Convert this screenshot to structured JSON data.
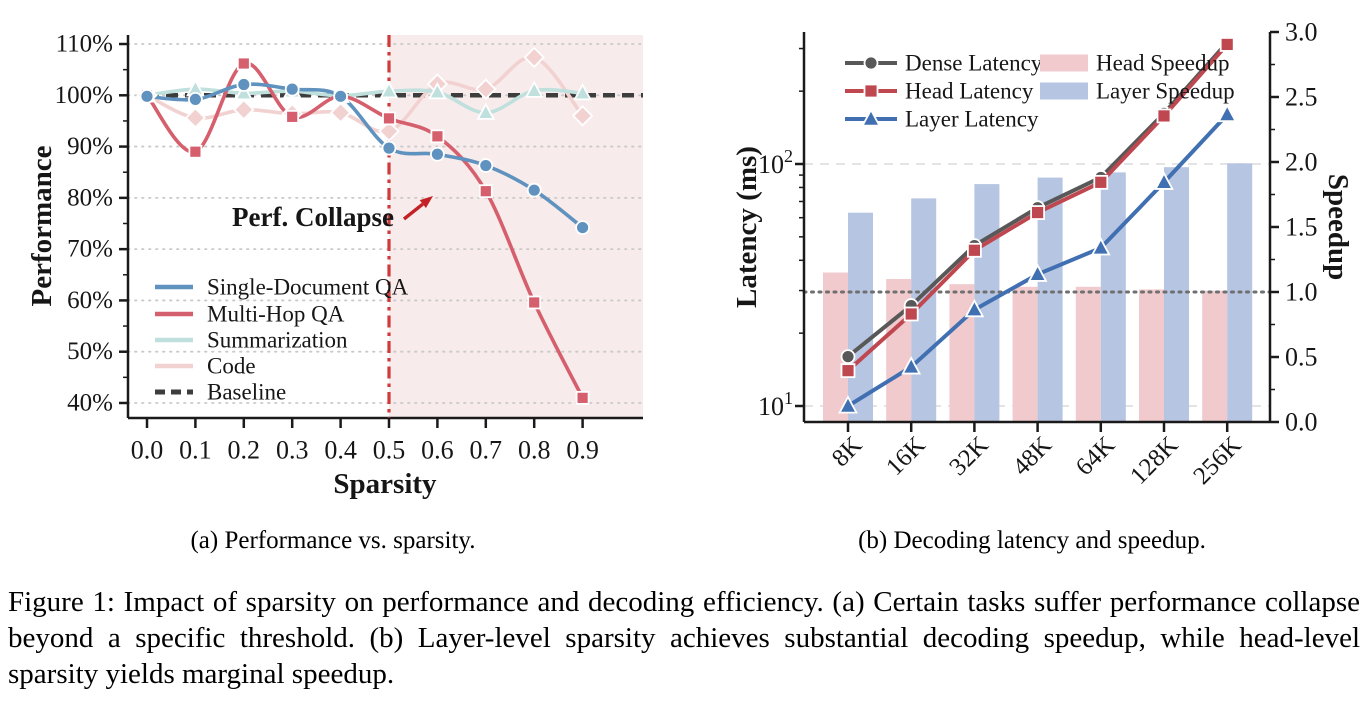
{
  "figure": {
    "subcaption_a": "(a) Performance vs. sparsity.",
    "subcaption_b": "(b) Decoding latency and speedup.",
    "caption": "Figure 1: Impact of sparsity on performance and decoding efficiency. (a) Certain tasks suffer performance collapse beyond a specific threshold. (b) Layer-level sparsity achieves substantial decoding speedup, while head-level sparsity yields marginal speedup."
  },
  "chart_data": [
    {
      "id": "performance-vs-sparsity",
      "type": "line",
      "xlabel": "Sparsity",
      "ylabel": "Performance",
      "x": [
        0.0,
        0.1,
        0.2,
        0.3,
        0.4,
        0.5,
        0.6,
        0.7,
        0.8,
        0.9
      ],
      "xtick_labels": [
        "0.0",
        "0.1",
        "0.2",
        "0.3",
        "0.4",
        "0.5",
        "0.6",
        "0.7",
        "0.8",
        "0.9"
      ],
      "ytick_values": [
        110,
        100,
        90,
        80,
        70,
        60,
        50,
        40
      ],
      "ytick_labels": [
        "110%",
        "100%",
        "90%",
        "80%",
        "70%",
        "60%",
        "50%",
        "40%"
      ],
      "ylim": [
        37,
        111.8
      ],
      "xlim": [
        -0.04,
        1.025
      ],
      "grid": "dotted horizontal",
      "legend_position": "lower left",
      "series": [
        {
          "name": "Single-Document QA",
          "color": "#5f92bf",
          "marker": "circle",
          "smooth": true,
          "values": [
            99.8,
            99.2,
            102.1,
            101.2,
            99.8,
            89.7,
            88.5,
            86.3,
            81.5,
            74.2
          ]
        },
        {
          "name": "Multi-Hop QA",
          "color": "#d55f6d",
          "marker": "square",
          "smooth": true,
          "values": [
            100,
            89,
            106.2,
            95.8,
            99.8,
            95.5,
            92,
            81.3,
            59.6,
            41
          ]
        },
        {
          "name": "Summarization",
          "color": "#bfe0dd",
          "marker": "triangle",
          "smooth": true,
          "values": [
            100,
            101.2,
            100.4,
            100.8,
            99.9,
            100.8,
            100.6,
            96.6,
            100.9,
            100.4
          ]
        },
        {
          "name": "Code",
          "color": "#f2d2d1",
          "marker": "diamond",
          "smooth": true,
          "values": [
            100,
            95.6,
            97.2,
            96.4,
            96.6,
            93,
            102.2,
            101.2,
            107.4,
            96
          ]
        },
        {
          "name": "Baseline",
          "color": "#3d3d3d",
          "marker": "none",
          "style": "dashed",
          "values": [
            100,
            100,
            100,
            100,
            100,
            100,
            100,
            100,
            100,
            100
          ]
        }
      ],
      "annotation": {
        "text": "Perf. Collapse",
        "color": "#c42127"
      },
      "threshold_line": {
        "x": 0.5,
        "color": "#cf3a3a",
        "style": "dashdot"
      },
      "shaded_region": {
        "from_x": 0.5,
        "to_x": 1.025,
        "color": "#f8ebeb"
      }
    },
    {
      "id": "decoding-latency-speedup",
      "type": "bar+line",
      "categories": [
        "8K",
        "16K",
        "32K",
        "48K",
        "64K",
        "128K",
        "256K"
      ],
      "ylabel_left": "Latency (ms)",
      "ylabel_right": "Speedup",
      "left_axis": {
        "scale": "log",
        "tick_values": [
          10,
          100
        ],
        "tick_labels": [
          "10¹",
          "10²"
        ]
      },
      "right_axis": {
        "tick_values": [
          0,
          0.5,
          1.0,
          1.5,
          2.0,
          2.5,
          3.0
        ],
        "tick_labels": [
          "0.0",
          "0.5",
          "1.0",
          "1.5",
          "2.0",
          "2.5",
          "3.0"
        ],
        "lim": [
          0,
          3
        ]
      },
      "reference_line": {
        "speedup": 1.0,
        "style": "dotted"
      },
      "lines": [
        {
          "name": "Dense Latency",
          "color": "#585858",
          "marker": "circle",
          "values": [
            16,
            26,
            46,
            66,
            88,
            162,
            318
          ]
        },
        {
          "name": "Head Latency",
          "color": "#bf4750",
          "marker": "square",
          "values": [
            14,
            24,
            44,
            63,
            84,
            158,
            312
          ]
        },
        {
          "name": "Layer Latency",
          "color": "#4170b2",
          "marker": "triangle",
          "values": [
            10,
            14.5,
            25,
            35,
            45,
            84,
            160
          ]
        }
      ],
      "bars": [
        {
          "name": "Head Speedup",
          "color": "#f0cacc",
          "values": [
            1.15,
            1.1,
            1.06,
            1.04,
            1.04,
            1.02,
            1.01
          ]
        },
        {
          "name": "Layer Speedup",
          "color": "#b6c5e2",
          "values": [
            1.61,
            1.72,
            1.83,
            1.88,
            1.92,
            1.96,
            1.99
          ]
        }
      ]
    }
  ]
}
